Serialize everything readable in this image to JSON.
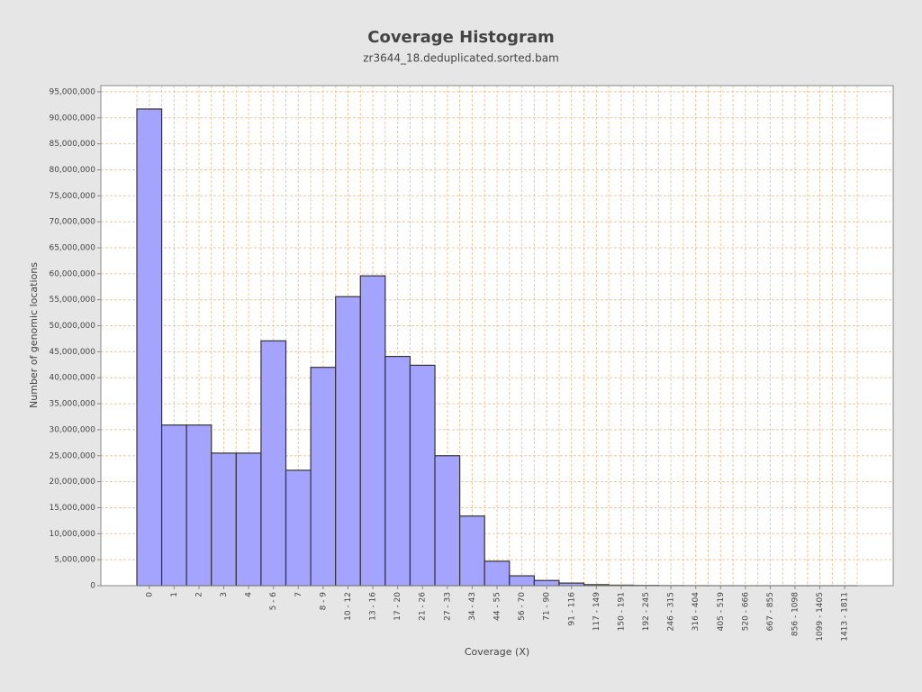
{
  "chart_data": {
    "type": "bar",
    "title": "Coverage Histogram",
    "subtitle": "zr3644_18.deduplicated.sorted.bam",
    "x_label": "Coverage (X)",
    "y_label": "Number of genomic locations",
    "categories": [
      "0",
      "1",
      "2",
      "3",
      "4",
      "5 - 6",
      "7",
      "8 - 9",
      "10 - 12",
      "13 - 16",
      "17 - 20",
      "21 - 26",
      "27 - 33",
      "34 - 43",
      "44 - 55",
      "56 - 70",
      "71 - 90",
      "91 - 116",
      "117 - 149",
      "150 - 191",
      "192 - 245",
      "246 - 315",
      "316 - 404",
      "405 - 519",
      "520 - 666",
      "667 - 855",
      "856 - 1098",
      "1099 - 1405",
      "1413 - 1811"
    ],
    "values": [
      91700000,
      30900000,
      30900000,
      25500000,
      25500000,
      47100000,
      22200000,
      42000000,
      55600000,
      59600000,
      44100000,
      42400000,
      25000000,
      13400000,
      4700000,
      1900000,
      1000000,
      500000,
      200000,
      100000,
      50000,
      20000,
      10000,
      5000,
      2000,
      1000,
      500,
      200,
      100
    ],
    "color": "#a4a4ff",
    "ylim": [
      0,
      96200000
    ],
    "yticks": [
      {
        "value": 0,
        "label": "0"
      },
      {
        "value": 5000000,
        "label": "5,000,000"
      },
      {
        "value": 10000000,
        "label": "10,000,000"
      },
      {
        "value": 15000000,
        "label": "15,000,000"
      },
      {
        "value": 20000000,
        "label": "20,000,000"
      },
      {
        "value": 25000000,
        "label": "25,000,000"
      },
      {
        "value": 30000000,
        "label": "30,000,000"
      },
      {
        "value": 35000000,
        "label": "35,000,000"
      },
      {
        "value": 40000000,
        "label": "40,000,000"
      },
      {
        "value": 45000000,
        "label": "45,000,000"
      },
      {
        "value": 50000000,
        "label": "50,000,000"
      },
      {
        "value": 55000000,
        "label": "55,000,000"
      },
      {
        "value": 60000000,
        "label": "60,000,000"
      },
      {
        "value": 65000000,
        "label": "65,000,000"
      },
      {
        "value": 70000000,
        "label": "70,000,000"
      },
      {
        "value": 75000000,
        "label": "75,000,000"
      },
      {
        "value": 80000000,
        "label": "80,000,000"
      },
      {
        "value": 85000000,
        "label": "85,000,000"
      },
      {
        "value": 90000000,
        "label": "90,000,000"
      },
      {
        "value": 95000000,
        "label": "95,000,000"
      }
    ],
    "grid": true
  }
}
